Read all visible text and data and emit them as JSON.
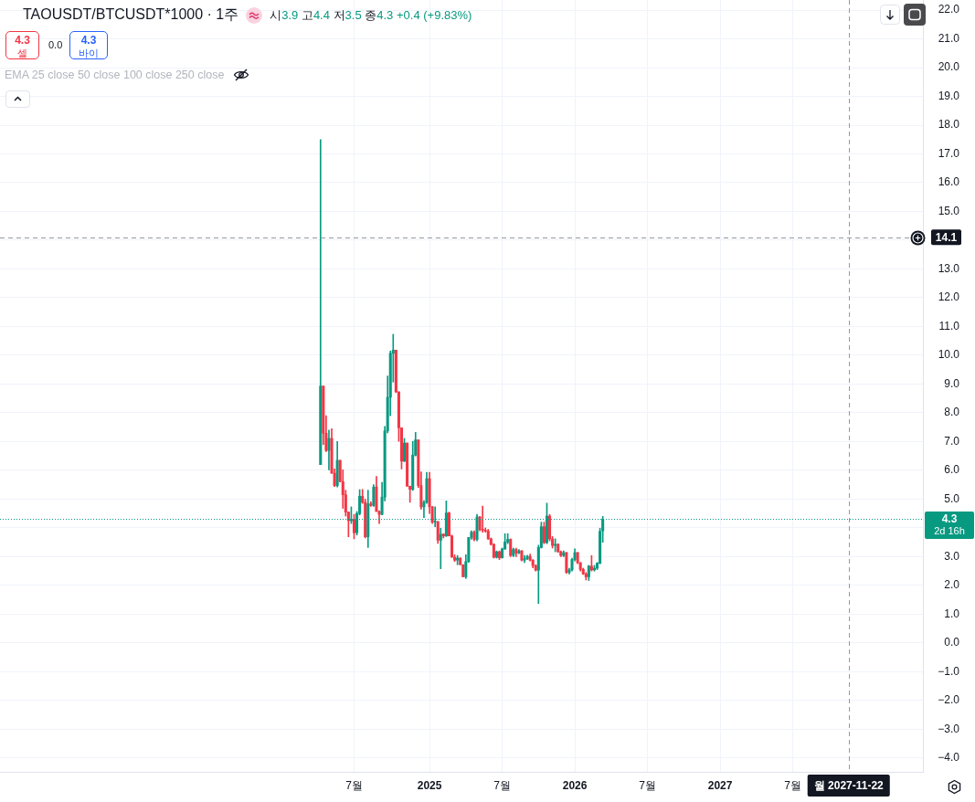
{
  "chart_data": {
    "type": "candlestick",
    "title": "TAOUSDT/BTCUSDT*1000 · 1주",
    "x": [
      "2024-04-08",
      "2024-04-15",
      "2024-04-22",
      "2024-04-29",
      "2024-05-06",
      "2024-05-13",
      "2024-05-20",
      "2024-05-27",
      "2024-06-03",
      "2024-06-10",
      "2024-06-17",
      "2024-06-24",
      "2024-07-01",
      "2024-07-08",
      "2024-07-15",
      "2024-07-22",
      "2024-07-29",
      "2024-08-05",
      "2024-08-12",
      "2024-08-19",
      "2024-08-26",
      "2024-09-02",
      "2024-09-09",
      "2024-09-16",
      "2024-09-23",
      "2024-09-30",
      "2024-10-07",
      "2024-10-14",
      "2024-10-21",
      "2024-10-28",
      "2024-11-04",
      "2024-11-11",
      "2024-11-18",
      "2024-11-25",
      "2024-12-02",
      "2024-12-09",
      "2024-12-16",
      "2024-12-23",
      "2024-12-30",
      "2025-01-06",
      "2025-01-13",
      "2025-01-20",
      "2025-01-27",
      "2025-02-03",
      "2025-02-10",
      "2025-02-17",
      "2025-02-24",
      "2025-03-03",
      "2025-03-10",
      "2025-03-17",
      "2025-03-24",
      "2025-03-31",
      "2025-04-07",
      "2025-04-14",
      "2025-04-21",
      "2025-04-28",
      "2025-05-05",
      "2025-05-12",
      "2025-05-19",
      "2025-05-26",
      "2025-06-02",
      "2025-06-09",
      "2025-06-16",
      "2025-06-23",
      "2025-06-30",
      "2025-07-07",
      "2025-07-14",
      "2025-07-21",
      "2025-07-28",
      "2025-08-04",
      "2025-08-11",
      "2025-08-18",
      "2025-08-25",
      "2025-09-01",
      "2025-09-08",
      "2025-09-15",
      "2025-09-22",
      "2025-09-29",
      "2025-10-06",
      "2025-10-13",
      "2025-10-20",
      "2025-10-27",
      "2025-11-03",
      "2025-11-10",
      "2025-11-17",
      "2025-11-24",
      "2025-12-01",
      "2025-12-08",
      "2025-12-15",
      "2025-12-22",
      "2025-12-29",
      "2026-01-05",
      "2026-01-12",
      "2026-01-19",
      "2026-01-26",
      "2026-02-02",
      "2026-02-09",
      "2026-02-16",
      "2026-02-23",
      "2026-03-02",
      "2026-03-09",
      "2026-03-16"
    ],
    "ohlc": [
      [
        6.2,
        17.5,
        6.2,
        8.93
      ],
      [
        8.93,
        8.93,
        6.9,
        7.29
      ],
      [
        7.29,
        7.9,
        6.65,
        6.69
      ],
      [
        6.69,
        7.4,
        6.02,
        7.11
      ],
      [
        7.11,
        7.45,
        5.9,
        5.9
      ],
      [
        5.9,
        6.05,
        5.44,
        5.47
      ],
      [
        5.47,
        7.0,
        5.42,
        6.35
      ],
      [
        6.35,
        6.35,
        5.6,
        5.61
      ],
      [
        5.61,
        6.02,
        4.68,
        5.15
      ],
      [
        5.15,
        5.31,
        4.41,
        4.55
      ],
      [
        4.55,
        4.55,
        3.69,
        4.25
      ],
      [
        4.25,
        4.73,
        4.15,
        4.3
      ],
      [
        4.3,
        4.47,
        3.62,
        3.83
      ],
      [
        3.83,
        4.57,
        3.75,
        4.5
      ],
      [
        4.5,
        5.33,
        4.45,
        5.1
      ],
      [
        5.1,
        5.34,
        4.85,
        4.89
      ],
      [
        4.89,
        5.0,
        3.65,
        3.69
      ],
      [
        3.69,
        5.31,
        3.32,
        4.84
      ],
      [
        4.84,
        4.91,
        4.75,
        4.78
      ],
      [
        4.78,
        5.5,
        4.75,
        5.42
      ],
      [
        5.42,
        5.79,
        4.57,
        4.57
      ],
      [
        4.57,
        4.6,
        4.15,
        4.47
      ],
      [
        4.47,
        5.58,
        4.45,
        5.07
      ],
      [
        5.07,
        7.53,
        4.94,
        7.37
      ],
      [
        7.37,
        9.28,
        7.3,
        8.54
      ],
      [
        8.54,
        10.15,
        7.9,
        10.07
      ],
      [
        10.07,
        10.73,
        9.07,
        10.18
      ],
      [
        10.18,
        10.18,
        8.7,
        8.73
      ],
      [
        8.73,
        8.73,
        7.01,
        7.48
      ],
      [
        7.48,
        7.48,
        6.05,
        6.32
      ],
      [
        6.32,
        7.11,
        6.3,
        6.95
      ],
      [
        6.95,
        6.95,
        5.45,
        5.45
      ],
      [
        5.45,
        5.45,
        4.89,
        5.34
      ],
      [
        5.34,
        7.01,
        5.3,
        6.53
      ],
      [
        6.53,
        7.32,
        6.5,
        7.06
      ],
      [
        7.06,
        7.06,
        5.4,
        5.47
      ],
      [
        5.47,
        5.95,
        4.65,
        4.73
      ],
      [
        4.73,
        4.95,
        4.36,
        4.89
      ],
      [
        4.89,
        5.93,
        4.85,
        5.71
      ],
      [
        5.71,
        5.93,
        4.5,
        4.73
      ],
      [
        4.73,
        4.75,
        4.15,
        4.2
      ],
      [
        4.2,
        4.73,
        4.04,
        4.22
      ],
      [
        4.22,
        4.22,
        3.46,
        3.57
      ],
      [
        3.57,
        3.99,
        2.58,
        3.78
      ],
      [
        3.78,
        3.8,
        3.65,
        3.72
      ],
      [
        3.72,
        4.94,
        3.7,
        4.52
      ],
      [
        4.52,
        4.55,
        3.72,
        3.72
      ],
      [
        3.72,
        3.75,
        2.98,
        2.98
      ],
      [
        2.98,
        3.07,
        2.83,
        2.88
      ],
      [
        2.88,
        3.04,
        2.72,
        2.95
      ],
      [
        2.95,
        2.96,
        2.72,
        2.72
      ],
      [
        2.72,
        2.72,
        2.3,
        2.3
      ],
      [
        2.3,
        3.07,
        2.24,
        2.83
      ],
      [
        2.83,
        3.67,
        2.8,
        3.67
      ],
      [
        3.67,
        3.9,
        3.6,
        3.85
      ],
      [
        3.85,
        3.9,
        3.55,
        3.6
      ],
      [
        3.6,
        4.47,
        3.55,
        4.38
      ],
      [
        4.38,
        4.4,
        3.9,
        3.94
      ],
      [
        3.94,
        4.76,
        3.85,
        3.92
      ],
      [
        3.92,
        4.0,
        3.85,
        3.89
      ],
      [
        3.89,
        3.95,
        3.6,
        3.62
      ],
      [
        3.62,
        3.65,
        3.4,
        3.43
      ],
      [
        3.43,
        3.45,
        2.95,
        2.98
      ],
      [
        2.98,
        3.2,
        2.95,
        3.17
      ],
      [
        3.17,
        3.2,
        2.9,
        2.96
      ],
      [
        2.96,
        3.3,
        2.95,
        3.27
      ],
      [
        3.27,
        3.8,
        3.25,
        3.51
      ],
      [
        3.51,
        3.8,
        3.45,
        3.6
      ],
      [
        3.6,
        3.62,
        3.0,
        3.04
      ],
      [
        3.04,
        3.3,
        3.0,
        3.25
      ],
      [
        3.25,
        3.3,
        3.0,
        3.12
      ],
      [
        3.12,
        3.25,
        3.1,
        3.2
      ],
      [
        3.2,
        3.22,
        2.85,
        2.88
      ],
      [
        2.88,
        3.04,
        2.79,
        2.93
      ],
      [
        2.93,
        3.05,
        2.9,
        3.01
      ],
      [
        3.01,
        3.09,
        2.85,
        2.88
      ],
      [
        2.88,
        2.9,
        2.61,
        2.69
      ],
      [
        2.69,
        2.72,
        2.5,
        2.53
      ],
      [
        2.53,
        3.4,
        1.37,
        3.32
      ],
      [
        3.32,
        4.2,
        3.3,
        4.04
      ],
      [
        4.04,
        4.2,
        3.45,
        3.49
      ],
      [
        3.49,
        4.86,
        3.45,
        4.41
      ],
      [
        4.41,
        4.47,
        3.55,
        3.62
      ],
      [
        3.62,
        3.7,
        3.3,
        3.39
      ],
      [
        3.39,
        3.62,
        3.17,
        3.43
      ],
      [
        3.43,
        3.45,
        3.15,
        3.17
      ],
      [
        3.17,
        3.2,
        3.0,
        3.04
      ],
      [
        3.04,
        3.2,
        3.0,
        3.14
      ],
      [
        3.14,
        3.15,
        2.42,
        2.45
      ],
      [
        2.45,
        2.6,
        2.4,
        2.54
      ],
      [
        2.54,
        2.95,
        2.5,
        2.9
      ],
      [
        2.9,
        3.27,
        2.85,
        3.14
      ],
      [
        3.14,
        3.15,
        2.75,
        2.79
      ],
      [
        2.79,
        2.8,
        2.5,
        2.56
      ],
      [
        2.56,
        2.6,
        2.38,
        2.4
      ],
      [
        2.4,
        2.45,
        2.19,
        2.3
      ],
      [
        2.3,
        2.7,
        2.17,
        2.67
      ],
      [
        2.67,
        3.04,
        2.5,
        2.54
      ],
      [
        2.54,
        2.7,
        2.5,
        2.6
      ],
      [
        2.6,
        2.8,
        2.55,
        2.77
      ],
      [
        2.77,
        3.99,
        2.75,
        3.88
      ],
      [
        3.9,
        4.4,
        3.5,
        4.3
      ]
    ],
    "colors": [
      "#089981",
      "#f23645",
      "#f23645",
      "#089981",
      "#f23645",
      "#f23645",
      "#089981",
      "#f23645",
      "#f23645",
      "#f23645",
      "#f23645",
      "#089981",
      "#f23645",
      "#089981",
      "#089981",
      "#f23645",
      "#f23645",
      "#089981",
      "#f23645",
      "#089981",
      "#f23645",
      "#f23645",
      "#089981",
      "#089981",
      "#089981",
      "#089981",
      "#089981",
      "#f23645",
      "#f23645",
      "#f23645",
      "#089981",
      "#f23645",
      "#f23645",
      "#089981",
      "#089981",
      "#f23645",
      "#f23645",
      "#089981",
      "#089981",
      "#f23645",
      "#f23645",
      "#089981",
      "#f23645",
      "#089981",
      "#f23645",
      "#089981",
      "#f23645",
      "#f23645",
      "#f23645",
      "#089981",
      "#f23645",
      "#f23645",
      "#089981",
      "#089981",
      "#089981",
      "#f23645",
      "#089981",
      "#f23645",
      "#f23645",
      "#f23645",
      "#f23645",
      "#f23645",
      "#f23645",
      "#089981",
      "#f23645",
      "#089981",
      "#089981",
      "#089981",
      "#f23645",
      "#089981",
      "#f23645",
      "#089981",
      "#f23645",
      "#089981",
      "#089981",
      "#f23645",
      "#f23645",
      "#f23645",
      "#089981",
      "#089981",
      "#f23645",
      "#089981",
      "#f23645",
      "#f23645",
      "#089981",
      "#f23645",
      "#f23645",
      "#089981",
      "#f23645",
      "#089981",
      "#089981",
      "#089981",
      "#f23645",
      "#f23645",
      "#f23645",
      "#f23645",
      "#089981",
      "#f23645",
      "#089981",
      "#089981",
      "#089981",
      "#089981"
    ],
    "xlim": [
      "2022-01-26",
      "2028-05-26"
    ],
    "xticks": [
      {
        "value": "2024-07-01",
        "label": "7월"
      },
      {
        "value": "2025-01-06",
        "label": "2025"
      },
      {
        "value": "2025-07-07",
        "label": "7월"
      },
      {
        "value": "2026-01-05",
        "label": "2026"
      },
      {
        "value": "2026-07-06",
        "label": "7월"
      },
      {
        "value": "2027-01-04",
        "label": "2027"
      },
      {
        "value": "2027-07-05",
        "label": "7월"
      }
    ],
    "ylim": [
      -4.48,
      22.35
    ],
    "yticks": [
      {
        "value": -4,
        "label": "−4.0"
      },
      {
        "value": -3,
        "label": "−3.0"
      },
      {
        "value": -2,
        "label": "−2.0"
      },
      {
        "value": -1,
        "label": "−1.0"
      },
      {
        "value": 0,
        "label": "0.0"
      },
      {
        "value": 1,
        "label": "1.0"
      },
      {
        "value": 2,
        "label": "2.0"
      },
      {
        "value": 3,
        "label": "3.0"
      },
      {
        "value": 4,
        "label": null
      },
      {
        "value": 5,
        "label": "5.0"
      },
      {
        "value": 6,
        "label": "6.0"
      },
      {
        "value": 7,
        "label": "7.0"
      },
      {
        "value": 8,
        "label": "8.0"
      },
      {
        "value": 9,
        "label": "9.0"
      },
      {
        "value": 10,
        "label": "10.0"
      },
      {
        "value": 11,
        "label": "11.0"
      },
      {
        "value": 12,
        "label": "12.0"
      },
      {
        "value": 13,
        "label": "13.0"
      },
      {
        "value": 14,
        "label": null
      },
      {
        "value": 15,
        "label": "15.0"
      },
      {
        "value": 16,
        "label": "16.0"
      },
      {
        "value": 17,
        "label": "17.0"
      },
      {
        "value": 18,
        "label": "18.0"
      },
      {
        "value": 19,
        "label": "19.0"
      },
      {
        "value": 20,
        "label": "20.0"
      },
      {
        "value": 21,
        "label": "21.0"
      },
      {
        "value": 22,
        "label": "22.0"
      }
    ],
    "ref_lines": [
      {
        "axis": "y",
        "value": 14.1,
        "label": "14.1",
        "color": "#9598a1",
        "line_style": "dashed"
      },
      {
        "axis": "y",
        "value": 4.3,
        "label": "4.3\n2d 16h",
        "color": "#089981",
        "line_style": "dotted"
      },
      {
        "axis": "x",
        "value": "2027-11-22",
        "label": "월 2027-11-22",
        "color": "#9598a1",
        "line_style": "dashed"
      }
    ],
    "annotations": [
      "시3.9 고4.4 저3.5 종4.3 +0.4 (+9.83%)",
      "4.3",
      "셀",
      "0.0",
      "4.3",
      "바이",
      "EMA 25 close 50 close 100 close 250 close"
    ],
    "grid": true,
    "legend": false
  }
}
